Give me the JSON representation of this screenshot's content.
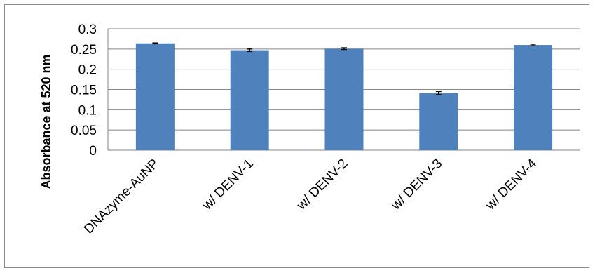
{
  "chart_data": {
    "type": "bar",
    "title": "",
    "xlabel": "",
    "ylabel": "Absorbance at 520 nm",
    "categories": [
      "DNAzyme-AuNP",
      "w/ DENV-1",
      "w/ DENV-2",
      "w/ DENV-3",
      "w/ DENV-4"
    ],
    "values": [
      0.264,
      0.247,
      0.251,
      0.141,
      0.26
    ],
    "errors": [
      0.001,
      0.003,
      0.002,
      0.004,
      0.002
    ],
    "ylim": [
      0,
      0.3
    ],
    "yticks": [
      "0",
      "0.05",
      "0.1",
      "0.15",
      "0.2",
      "0.25",
      "0.3"
    ],
    "grid": true,
    "legend": "none",
    "bar_color": "#4f81bd",
    "grid_color": "#868686"
  }
}
